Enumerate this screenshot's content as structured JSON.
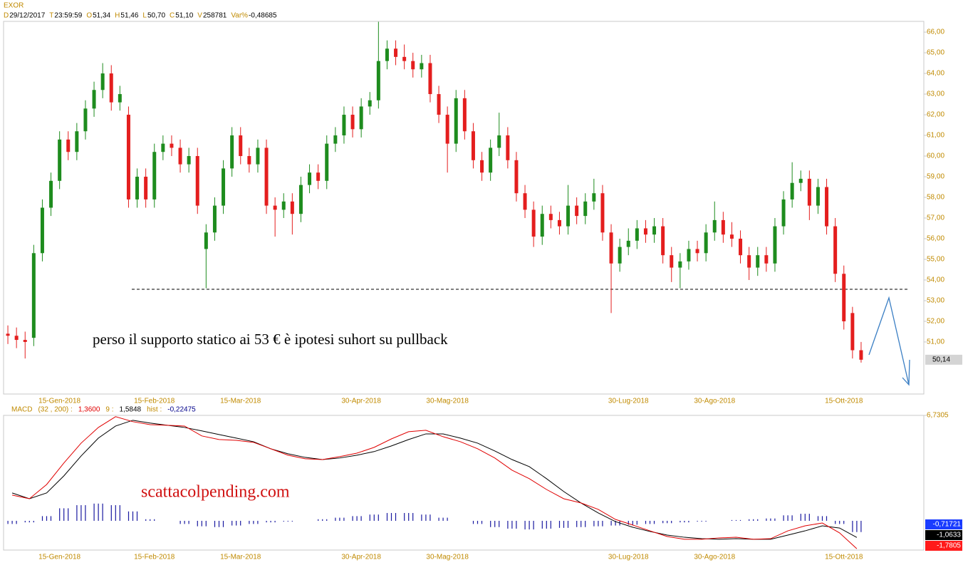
{
  "chart_data": {
    "type": "candlestick",
    "title": "EXOR",
    "header": [
      {
        "label": "D",
        "value": "29/12/2017"
      },
      {
        "label": "T",
        "value": "23:59:59"
      },
      {
        "label": "O",
        "value": "51,34"
      },
      {
        "label": "H",
        "value": "51,46"
      },
      {
        "label": "L",
        "value": "50,70"
      },
      {
        "label": "C",
        "value": "51,10"
      },
      {
        "label": "V",
        "value": "258781"
      },
      {
        "label": "Var%",
        "value": "-0,48685"
      }
    ],
    "categories": [
      null,
      null,
      null,
      null,
      null,
      null,
      "15-Gen-2018",
      null,
      null,
      null,
      null,
      null,
      null,
      null,
      null,
      null,
      null,
      "15-Feb-2018",
      null,
      null,
      null,
      null,
      null,
      null,
      null,
      null,
      null,
      "15-Mar-2018",
      null,
      null,
      null,
      null,
      null,
      null,
      null,
      null,
      null,
      null,
      null,
      null,
      null,
      "30-Apr-2018",
      null,
      null,
      null,
      null,
      null,
      null,
      null,
      null,
      null,
      "30-Mag-2018",
      null,
      null,
      null,
      null,
      null,
      null,
      null,
      null,
      null,
      null,
      null,
      null,
      null,
      null,
      null,
      null,
      null,
      null,
      null,
      null,
      "30-Lug-2018",
      null,
      null,
      null,
      null,
      null,
      null,
      null,
      null,
      null,
      "30-Ago-2018",
      null,
      null,
      null,
      null,
      null,
      null,
      null,
      null,
      null,
      null,
      null,
      null,
      null,
      null,
      "15-Ott-2018",
      null,
      null
    ],
    "open": [
      51.4,
      51.3,
      51.1,
      51.2,
      55.3,
      57.5,
      58.8,
      60.8,
      60.2,
      61.2,
      62.3,
      63.2,
      64.0,
      62.6,
      62.0,
      57.9,
      59.0,
      57.9,
      60.2,
      60.6,
      60.4,
      59.6,
      60.0,
      55.5,
      56.3,
      57.6,
      59.4,
      61.0,
      60.0,
      59.6,
      60.4,
      57.6,
      57.4,
      57.8,
      57.2,
      58.6,
      59.2,
      58.8,
      60.6,
      61.0,
      62.0,
      61.3,
      62.4,
      62.7,
      64.6,
      65.2,
      64.8,
      64.6,
      64.2,
      64.5,
      63.0,
      62.0,
      60.6,
      62.8,
      61.2,
      59.8,
      59.2,
      60.4,
      61.0,
      59.8,
      58.2,
      57.4,
      56.1,
      57.2,
      56.9,
      56.6,
      57.6,
      57.1,
      57.8,
      58.2,
      56.3,
      54.8,
      55.6,
      55.9,
      56.5,
      56.2,
      56.6,
      55.2,
      54.6,
      54.9,
      55.5,
      55.3,
      56.3,
      56.9,
      56.2,
      56.0,
      55.2,
      54.6,
      55.2,
      54.8,
      56.6,
      57.9,
      58.7,
      58.9,
      57.6,
      58.5,
      56.6,
      54.3,
      52.4,
      50.6
    ],
    "high": [
      51.8,
      51.7,
      51.5,
      55.7,
      57.9,
      59.2,
      61.2,
      61.2,
      61.6,
      62.7,
      63.6,
      64.5,
      64.4,
      63.4,
      62.4,
      59.4,
      59.4,
      60.6,
      61.0,
      61.0,
      60.8,
      60.4,
      60.4,
      56.7,
      58.0,
      59.8,
      61.4,
      61.4,
      60.4,
      60.8,
      60.8,
      58.0,
      58.2,
      58.2,
      59.0,
      59.6,
      59.6,
      61.0,
      61.4,
      62.4,
      62.4,
      62.8,
      63.1,
      66.5,
      65.6,
      65.6,
      65.4,
      65.0,
      64.9,
      64.9,
      63.4,
      62.4,
      63.2,
      63.2,
      61.6,
      60.2,
      60.8,
      62.1,
      61.4,
      60.2,
      58.6,
      57.8,
      57.6,
      57.6,
      57.3,
      58.6,
      58.0,
      58.2,
      58.9,
      58.6,
      56.7,
      56.0,
      56.5,
      56.9,
      56.9,
      57.0,
      57.0,
      55.6,
      55.3,
      55.9,
      55.9,
      56.7,
      57.8,
      57.3,
      56.8,
      56.4,
      55.6,
      55.6,
      55.6,
      57.0,
      58.3,
      59.7,
      59.3,
      59.3,
      58.9,
      58.9,
      57.0,
      54.7,
      52.7,
      51.0
    ],
    "low": [
      50.9,
      50.7,
      50.2,
      50.8,
      54.9,
      57.1,
      58.4,
      59.8,
      59.8,
      60.8,
      61.9,
      62.8,
      62.2,
      62.2,
      57.5,
      57.5,
      57.5,
      57.5,
      59.8,
      60.0,
      59.2,
      59.2,
      57.2,
      53.6,
      55.9,
      57.2,
      59.0,
      59.6,
      59.2,
      59.2,
      57.2,
      56.1,
      57.0,
      56.2,
      56.8,
      58.2,
      58.4,
      58.4,
      60.2,
      60.6,
      60.9,
      60.9,
      62.0,
      62.3,
      64.2,
      64.4,
      64.2,
      63.8,
      63.8,
      62.6,
      61.6,
      59.2,
      60.2,
      60.8,
      59.4,
      58.8,
      58.8,
      60.0,
      59.4,
      57.8,
      57.0,
      55.6,
      55.7,
      56.5,
      56.2,
      56.2,
      56.7,
      56.7,
      57.4,
      55.9,
      52.4,
      54.4,
      55.2,
      55.5,
      55.8,
      55.8,
      54.8,
      53.9,
      53.6,
      54.5,
      54.9,
      54.9,
      55.9,
      55.8,
      55.6,
      54.8,
      54.0,
      54.2,
      54.4,
      54.4,
      56.2,
      57.5,
      58.3,
      56.9,
      57.2,
      56.2,
      53.9,
      51.6,
      50.2,
      50.0
    ],
    "close": [
      51.3,
      51.1,
      51.0,
      55.3,
      57.5,
      58.8,
      60.8,
      60.2,
      61.2,
      62.3,
      63.2,
      64.0,
      62.6,
      63.0,
      57.9,
      59.0,
      57.9,
      60.2,
      60.6,
      60.4,
      59.6,
      60.0,
      57.6,
      56.3,
      57.6,
      59.4,
      61.0,
      60.0,
      59.6,
      60.4,
      57.6,
      57.4,
      57.8,
      57.2,
      58.6,
      59.2,
      58.8,
      60.6,
      61.0,
      62.0,
      61.3,
      62.4,
      62.7,
      64.6,
      65.2,
      64.8,
      64.6,
      64.2,
      64.5,
      63.0,
      62.0,
      60.6,
      62.8,
      61.2,
      59.8,
      59.2,
      60.4,
      61.0,
      59.8,
      58.2,
      57.4,
      56.1,
      57.2,
      56.9,
      56.6,
      57.6,
      57.1,
      57.8,
      58.2,
      56.3,
      54.8,
      55.6,
      55.9,
      56.5,
      56.2,
      56.6,
      55.2,
      54.6,
      54.9,
      55.5,
      55.3,
      56.3,
      56.9,
      56.2,
      56.0,
      55.2,
      54.6,
      55.2,
      54.8,
      56.6,
      57.9,
      58.7,
      58.9,
      57.6,
      58.5,
      56.6,
      54.3,
      52.0,
      50.6,
      50.14
    ],
    "up_color": "#1e8c1e",
    "down_color": "#e41e1e",
    "ylim": [
      48.48,
      66.52
    ],
    "yticks": [
      {
        "value": 51,
        "label": "51,00"
      },
      {
        "value": 52,
        "label": "52,00"
      },
      {
        "value": 53,
        "label": "53,00"
      },
      {
        "value": 54,
        "label": "54,00"
      },
      {
        "value": 55,
        "label": "55,00"
      },
      {
        "value": 56,
        "label": "56,00"
      },
      {
        "value": 57,
        "label": "57,00"
      },
      {
        "value": 58,
        "label": "58,00"
      },
      {
        "value": 59,
        "label": "59,00"
      },
      {
        "value": 60,
        "label": "60,00"
      },
      {
        "value": 61,
        "label": "61,00"
      },
      {
        "value": 62,
        "label": "62,00"
      },
      {
        "value": 63,
        "label": "63,00"
      },
      {
        "value": 64,
        "label": "64,00"
      },
      {
        "value": 65,
        "label": "65,00"
      },
      {
        "value": 66,
        "label": "66,00"
      }
    ],
    "last_price": {
      "value": 50.14,
      "label": "50,14"
    },
    "support_level": 53.55,
    "annotation": "perso il supporto statico ai 53 € è ipotesi suhort su pullback",
    "watermark": "scattacolpending.com",
    "macd": {
      "type": "line",
      "legend": [
        {
          "text": "MACD",
          "color": "#c08a00"
        },
        {
          "text": "(32 , 200) :",
          "color": "#c08a00"
        },
        {
          "text": "1,3600",
          "color": "#e00000"
        },
        {
          "text": "9 :",
          "color": "#c08a00"
        },
        {
          "text": "1,5848",
          "color": "#000000"
        },
        {
          "text": "hist :",
          "color": "#c08a00"
        },
        {
          "text": "-0,22475",
          "color": "#00008b"
        }
      ],
      "ylim": [
        -1.866,
        6.7305
      ],
      "yticks": [
        {
          "value": 6.7305,
          "label": "6,7305"
        }
      ],
      "hist": {
        "color": "#1a1aa0",
        "last": {
          "value": -0.71721,
          "label": "-0,71721"
        },
        "values": [
          -0.2,
          -0.1,
          0.3,
          0.8,
          1.0,
          1.1,
          1.0,
          0.6,
          0.1,
          0.0,
          -0.2,
          -0.35,
          -0.4,
          -0.3,
          -0.2,
          -0.1,
          -0.05,
          0.0,
          0.1,
          0.2,
          0.3,
          0.4,
          0.5,
          0.5,
          0.4,
          0.2,
          0.0,
          -0.2,
          -0.4,
          -0.5,
          -0.55,
          -0.5,
          -0.45,
          -0.4,
          -0.35,
          -0.3,
          -0.25,
          -0.2,
          -0.15,
          -0.1,
          -0.05,
          0.0,
          0.05,
          0.1,
          0.15,
          0.35,
          0.45,
          0.3,
          -0.2,
          -0.71721
        ]
      },
      "signal": {
        "color": "#000000",
        "last": {
          "value": -1.0633,
          "label": "-1,0633"
        },
        "values": [
          1.78,
          1.41,
          1.78,
          2.87,
          4.14,
          5.28,
          6.05,
          6.42,
          6.24,
          6.1,
          5.96,
          5.74,
          5.51,
          5.28,
          5.05,
          4.6,
          4.28,
          4.05,
          3.91,
          4.01,
          4.19,
          4.42,
          4.78,
          5.19,
          5.55,
          5.55,
          5.28,
          4.96,
          4.46,
          3.91,
          3.46,
          2.69,
          1.87,
          1.14,
          0.5,
          -0.05,
          -0.41,
          -0.68,
          -0.91,
          -1.05,
          -1.14,
          -1.18,
          -1.14,
          -1.18,
          -1.18,
          -0.91,
          -0.64,
          -0.32,
          -0.46,
          -1.0633
        ]
      },
      "macd": {
        "color": "#e00000",
        "last": {
          "value": -1.7805,
          "label": "-1,7805"
        },
        "values": [
          1.64,
          1.41,
          2.32,
          3.69,
          4.96,
          5.96,
          6.65,
          6.33,
          6.14,
          6.1,
          6.05,
          5.42,
          5.19,
          5.14,
          5.01,
          4.6,
          4.19,
          3.96,
          3.91,
          4.1,
          4.32,
          4.69,
          5.23,
          5.69,
          5.78,
          5.37,
          5.05,
          4.6,
          4.01,
          3.23,
          2.69,
          2.0,
          1.41,
          1.14,
          0.73,
          0.09,
          -0.27,
          -0.64,
          -1.0,
          -1.18,
          -1.18,
          -1.09,
          -1.05,
          -1.18,
          -1.14,
          -0.64,
          -0.32,
          -0.14,
          -0.77,
          -1.7805
        ]
      }
    }
  }
}
